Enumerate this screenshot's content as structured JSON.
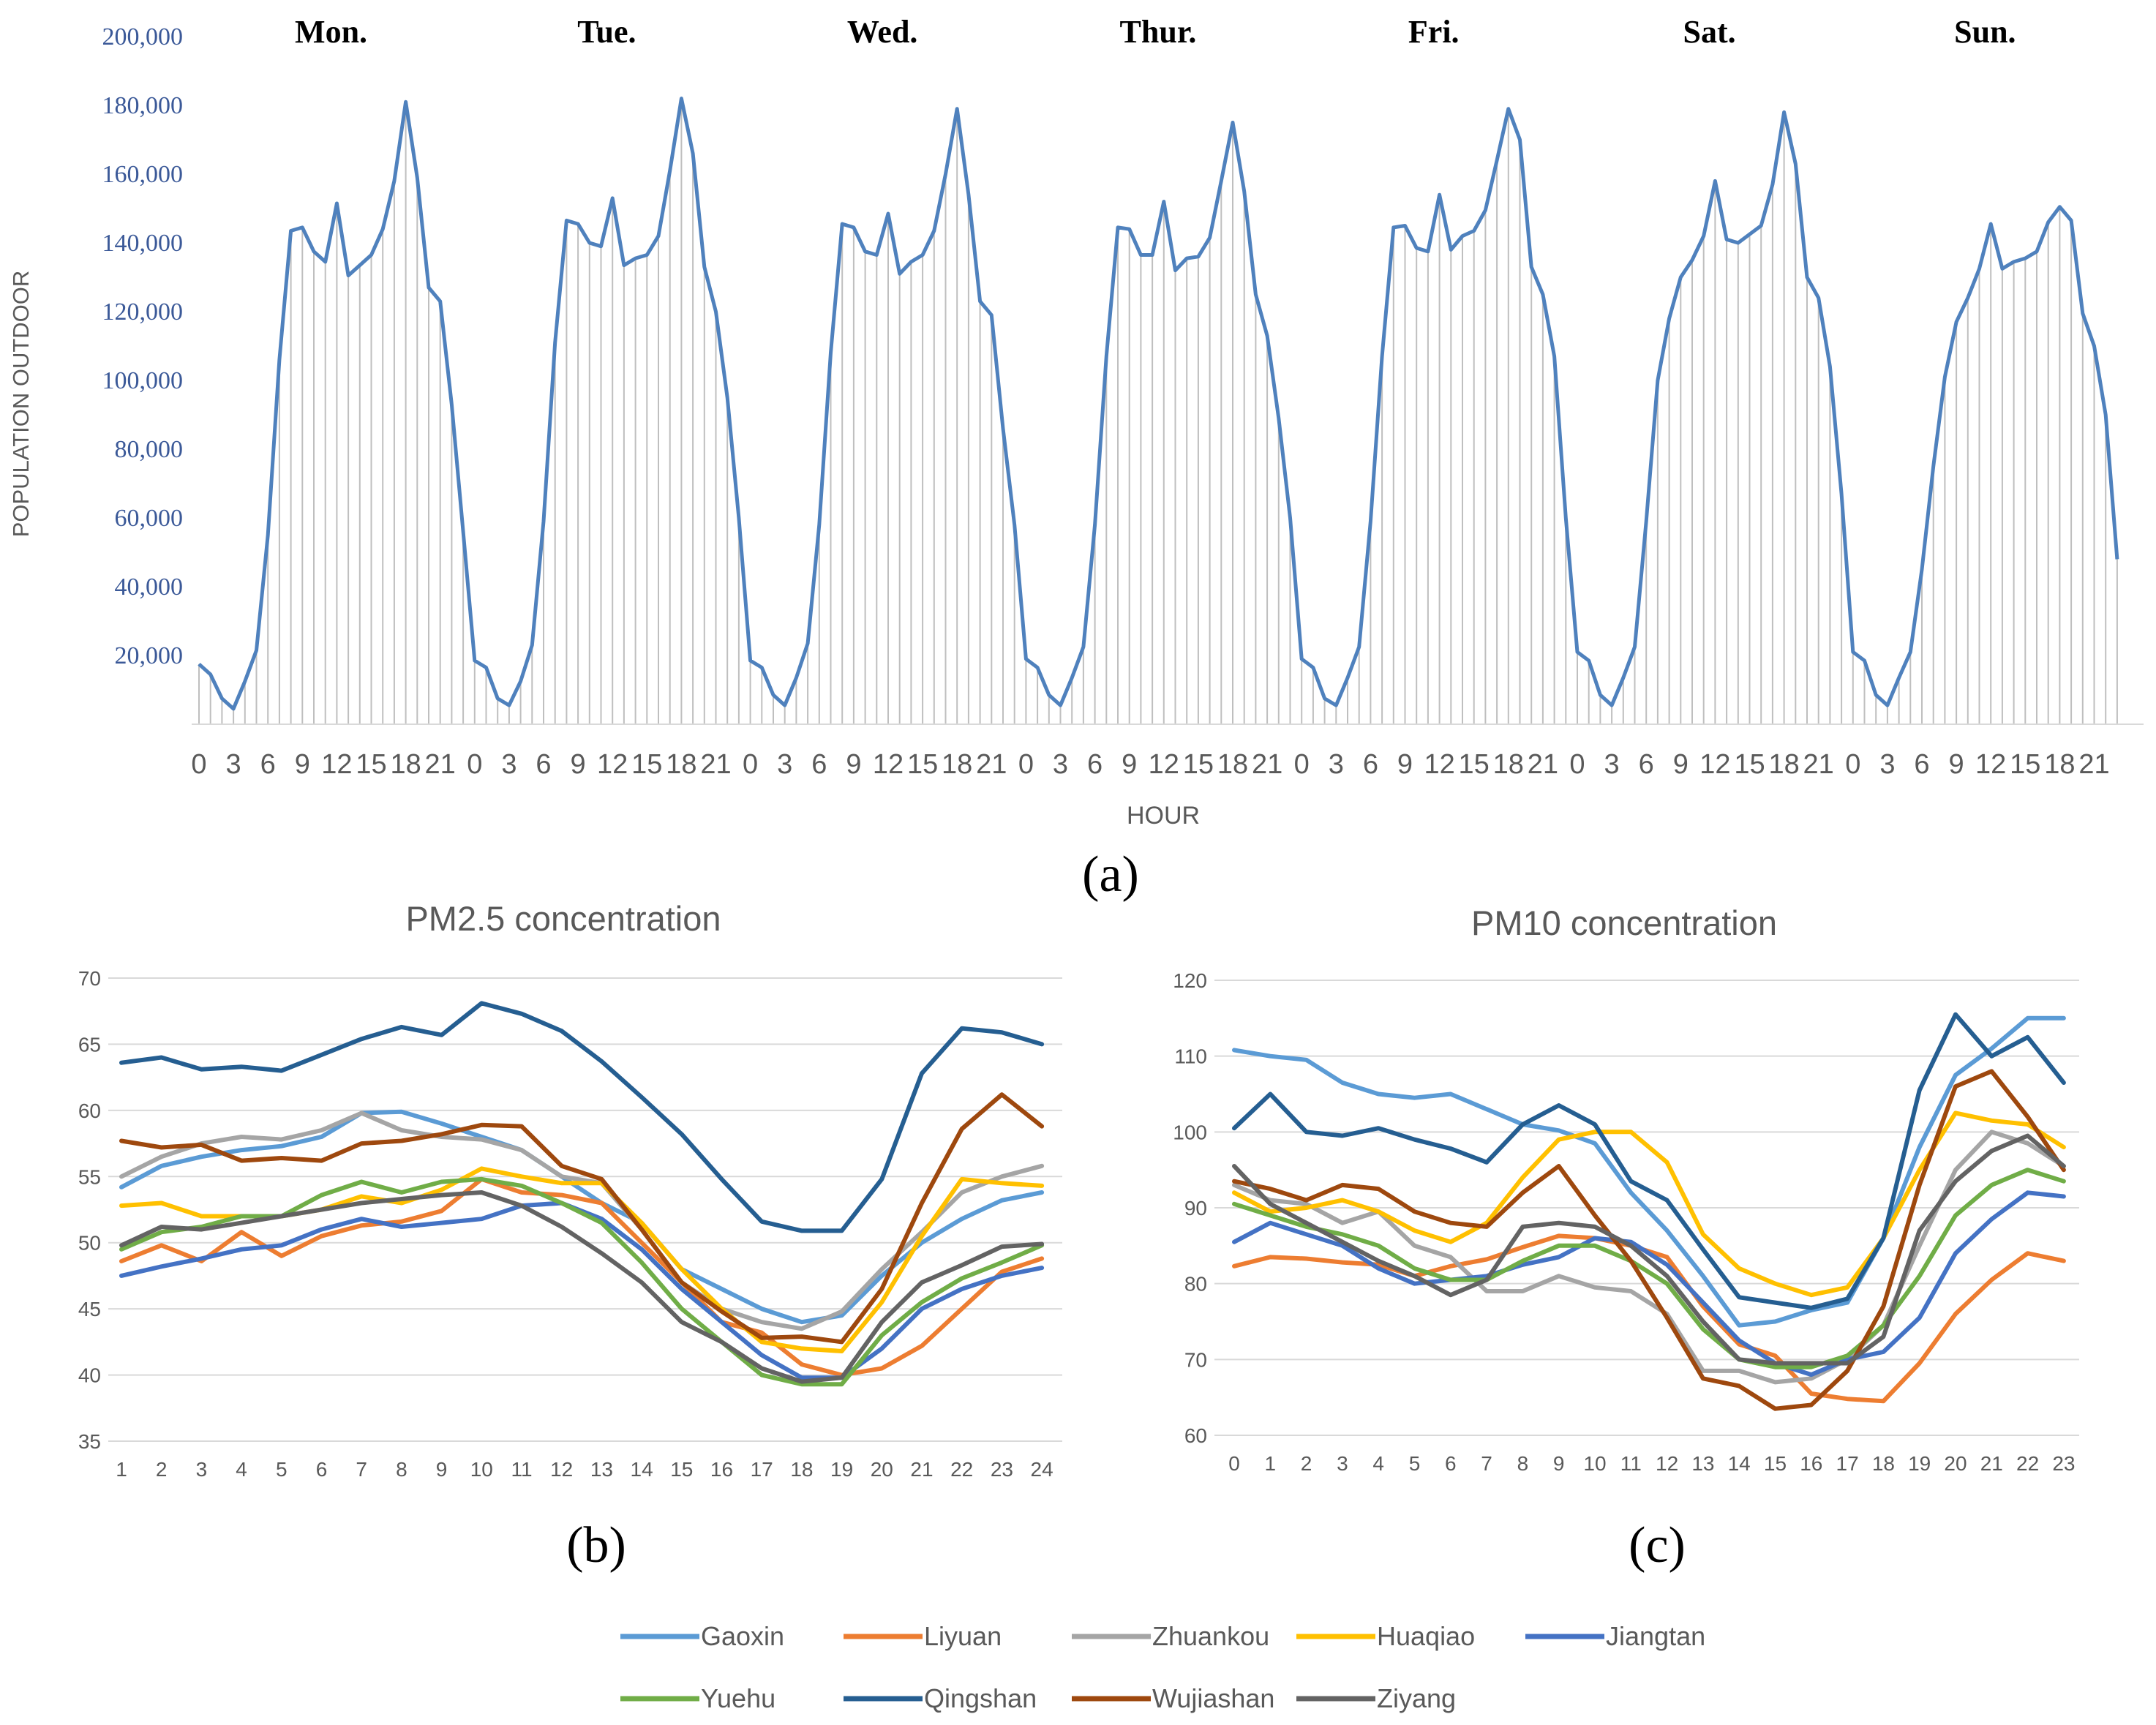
{
  "chart_data": [
    {
      "id": "a",
      "type": "area",
      "panel_label": "(a)",
      "xlabel": "HOUR",
      "ylabel": "POPULATION OUTDOOR",
      "ylim": [
        0,
        200000
      ],
      "yticks": [
        "20,000",
        "40,000",
        "60,000",
        "80,000",
        "100,000",
        "120,000",
        "140,000",
        "160,000",
        "180,000",
        "200,000"
      ],
      "ytick_values": [
        20000,
        40000,
        60000,
        80000,
        100000,
        120000,
        140000,
        160000,
        180000,
        200000
      ],
      "hour_tick_labels": [
        "0",
        "3",
        "6",
        "9",
        "12",
        "15",
        "18",
        "21"
      ],
      "days": [
        {
          "label": "Mon.",
          "values": [
            17500,
            14500,
            7500,
            4500,
            12500,
            21500,
            55000,
            106000,
            143500,
            144500,
            137500,
            134500,
            151500,
            130500,
            133500,
            136500,
            144000,
            158000,
            181000,
            159000,
            127000,
            123000,
            93000,
            56000
          ]
        },
        {
          "label": "Tue.",
          "values": [
            18500,
            16500,
            7500,
            5500,
            12500,
            23000,
            59000,
            111000,
            146500,
            145500,
            140000,
            139000,
            153000,
            133500,
            135500,
            136500,
            142000,
            161000,
            182000,
            166000,
            133000,
            120000,
            95000,
            60000
          ]
        },
        {
          "label": "Wed.",
          "values": [
            18500,
            16500,
            8500,
            5500,
            13500,
            23500,
            58000,
            108000,
            145500,
            144500,
            137500,
            136500,
            148500,
            131000,
            134500,
            136500,
            143500,
            160000,
            179000,
            154000,
            123000,
            119000,
            86000,
            58000
          ]
        },
        {
          "label": "Thur.",
          "values": [
            19000,
            16500,
            8500,
            5500,
            13500,
            22500,
            58000,
            107000,
            144500,
            144000,
            136500,
            136500,
            152000,
            132000,
            135500,
            136000,
            141500,
            158000,
            175000,
            155000,
            125000,
            113000,
            89000,
            60000
          ]
        },
        {
          "label": "Fri.",
          "values": [
            19000,
            16500,
            7500,
            5500,
            13500,
            22500,
            59000,
            107000,
            144500,
            145000,
            138500,
            137500,
            154000,
            138000,
            142000,
            143500,
            149500,
            164000,
            179000,
            170000,
            133000,
            125000,
            107000,
            60000
          ]
        },
        {
          "label": "Sat.",
          "values": [
            21000,
            18500,
            8500,
            5500,
            13500,
            22500,
            59000,
            100000,
            118000,
            130000,
            135000,
            142000,
            158000,
            141000,
            140000,
            142500,
            145000,
            157000,
            178000,
            163000,
            130000,
            124000,
            104000,
            67000
          ]
        },
        {
          "label": "Sun.",
          "values": [
            21000,
            18500,
            8500,
            5500,
            13500,
            21000,
            45000,
            75000,
            101000,
            117000,
            124000,
            132500,
            145500,
            132500,
            134500,
            135500,
            137500,
            146000,
            150500,
            146500,
            119500,
            110000,
            90000,
            48000
          ]
        }
      ]
    },
    {
      "id": "b",
      "type": "line",
      "panel_label": "(b)",
      "title": "PM2.5 concentration",
      "x": [
        "1",
        "2",
        "3",
        "4",
        "5",
        "6",
        "7",
        "8",
        "9",
        "10",
        "11",
        "12",
        "13",
        "14",
        "15",
        "16",
        "17",
        "18",
        "19",
        "20",
        "21",
        "22",
        "23",
        "24"
      ],
      "ylim": [
        35,
        70
      ],
      "yticks": [
        "35",
        "40",
        "45",
        "50",
        "55",
        "60",
        "65",
        "70"
      ],
      "ytick_values": [
        35,
        40,
        45,
        50,
        55,
        60,
        65,
        70
      ],
      "series": [
        {
          "name": "Gaoxin",
          "values": [
            54.2,
            55.8,
            56.5,
            57.0,
            57.3,
            58.0,
            59.8,
            59.9,
            59.0,
            58.0,
            57.0,
            55.0,
            53.0,
            51.5,
            48.0,
            46.5,
            45.0,
            44.0,
            44.5,
            47.5,
            50.0,
            51.8,
            53.2,
            53.8
          ]
        },
        {
          "name": "Liyuan",
          "values": [
            48.6,
            49.8,
            48.6,
            50.8,
            49.0,
            50.5,
            51.3,
            51.6,
            52.4,
            54.8,
            53.8,
            53.6,
            53.0,
            50.0,
            47.0,
            44.0,
            43.2,
            40.8,
            40.0,
            40.5,
            42.2,
            45.0,
            47.8,
            48.8
          ]
        },
        {
          "name": "Zhuankou",
          "values": [
            55.0,
            56.5,
            57.5,
            58.0,
            57.8,
            58.5,
            59.8,
            58.5,
            58.0,
            57.8,
            57.0,
            55.0,
            54.5,
            51.0,
            47.0,
            45.0,
            44.0,
            43.5,
            44.8,
            48.0,
            50.8,
            53.8,
            55.0,
            55.8
          ]
        },
        {
          "name": "Huaqiao",
          "values": [
            52.8,
            53.0,
            52.0,
            52.0,
            52.0,
            52.5,
            53.5,
            53.0,
            54.0,
            55.6,
            55.0,
            54.5,
            54.5,
            51.5,
            48.0,
            45.0,
            42.5,
            42.0,
            41.8,
            45.5,
            50.5,
            54.8,
            54.5,
            54.3
          ]
        },
        {
          "name": "Jiangtan",
          "values": [
            47.5,
            48.2,
            48.8,
            49.5,
            49.8,
            51.0,
            51.8,
            51.2,
            51.5,
            51.8,
            52.8,
            53.0,
            51.8,
            49.5,
            46.5,
            44.0,
            41.5,
            39.8,
            39.8,
            42.0,
            45.0,
            46.5,
            47.5,
            48.1
          ]
        },
        {
          "name": "Yuehu",
          "values": [
            49.5,
            50.8,
            51.2,
            52.0,
            52.0,
            53.6,
            54.6,
            53.8,
            54.6,
            54.8,
            54.3,
            53.0,
            51.5,
            48.5,
            45.0,
            42.5,
            40.0,
            39.3,
            39.3,
            43.0,
            45.5,
            47.3,
            48.5,
            49.8
          ]
        },
        {
          "name": "Qingshan",
          "values": [
            63.6,
            64.0,
            63.1,
            63.3,
            63.0,
            64.2,
            65.4,
            66.3,
            65.7,
            68.1,
            67.3,
            66.0,
            63.7,
            61.0,
            58.2,
            54.8,
            51.6,
            50.9,
            50.9,
            54.8,
            62.8,
            66.2,
            65.9,
            65.0
          ]
        },
        {
          "name": "Wujiashan",
          "values": [
            57.7,
            57.2,
            57.4,
            56.2,
            56.4,
            56.2,
            57.5,
            57.7,
            58.2,
            58.9,
            58.8,
            55.8,
            54.8,
            51.0,
            47.0,
            44.8,
            42.8,
            42.9,
            42.5,
            46.5,
            53.0,
            58.6,
            61.2,
            58.8
          ]
        },
        {
          "name": "Ziyang",
          "values": [
            49.8,
            51.2,
            51.0,
            51.5,
            52.0,
            52.5,
            53.0,
            53.3,
            53.6,
            53.8,
            52.8,
            51.2,
            49.2,
            47.0,
            44.0,
            42.5,
            40.5,
            39.5,
            39.8,
            44.0,
            47.0,
            48.3,
            49.7,
            49.9
          ]
        }
      ]
    },
    {
      "id": "c",
      "type": "line",
      "panel_label": "(c)",
      "title": "PM10 concentration",
      "x": [
        "0",
        "1",
        "2",
        "3",
        "4",
        "5",
        "6",
        "7",
        "8",
        "9",
        "10",
        "11",
        "12",
        "13",
        "14",
        "15",
        "16",
        "17",
        "18",
        "19",
        "20",
        "21",
        "22",
        "23"
      ],
      "ylim": [
        60,
        120
      ],
      "yticks": [
        "60",
        "70",
        "80",
        "90",
        "100",
        "110",
        "120"
      ],
      "ytick_values": [
        60,
        70,
        80,
        90,
        100,
        110,
        120
      ],
      "series": [
        {
          "name": "Gaoxin",
          "values": [
            110.8,
            110.0,
            109.5,
            106.5,
            105.0,
            104.5,
            105.0,
            103.0,
            101.0,
            100.2,
            98.5,
            92.0,
            87.0,
            81.0,
            74.5,
            75.0,
            76.5,
            77.5,
            86.0,
            98.0,
            107.5,
            111.0,
            115.0,
            115.0
          ]
        },
        {
          "name": "Liyuan",
          "values": [
            82.3,
            83.5,
            83.3,
            82.8,
            82.5,
            81.0,
            82.3,
            83.2,
            84.8,
            86.3,
            86.0,
            85.0,
            83.5,
            77.0,
            72.0,
            70.5,
            65.5,
            64.8,
            64.5,
            69.5,
            76.0,
            80.5,
            84.0,
            83.0
          ]
        },
        {
          "name": "Zhuankou",
          "values": [
            93.0,
            91.0,
            90.5,
            88.0,
            89.5,
            85.0,
            83.5,
            79.0,
            79.0,
            81.0,
            79.5,
            79.0,
            76.0,
            68.5,
            68.5,
            67.0,
            67.5,
            70.0,
            74.5,
            85.0,
            95.0,
            100.0,
            98.5,
            95.5
          ]
        },
        {
          "name": "Huaqiao",
          "values": [
            92.0,
            89.5,
            90.0,
            91.0,
            89.5,
            87.0,
            85.5,
            88.0,
            94.0,
            99.0,
            100.0,
            100.0,
            96.0,
            86.5,
            82.0,
            80.0,
            78.5,
            79.5,
            86.0,
            95.0,
            102.5,
            101.5,
            101.0,
            98.0
          ]
        },
        {
          "name": "Jiangtan",
          "values": [
            85.5,
            88.0,
            86.5,
            85.0,
            82.0,
            80.0,
            80.5,
            81.0,
            82.5,
            83.5,
            86.0,
            85.5,
            82.5,
            77.5,
            72.5,
            69.5,
            68.0,
            70.0,
            71.0,
            75.5,
            84.0,
            88.5,
            92.0,
            91.5
          ]
        },
        {
          "name": "Yuehu",
          "values": [
            90.5,
            89.0,
            87.5,
            86.5,
            85.0,
            82.0,
            80.5,
            80.5,
            83.0,
            85.0,
            85.0,
            83.0,
            80.0,
            74.0,
            70.0,
            69.0,
            69.0,
            70.5,
            74.5,
            81.0,
            89.0,
            93.0,
            95.0,
            93.5
          ]
        },
        {
          "name": "Qingshan",
          "values": [
            100.5,
            105.0,
            100.0,
            99.5,
            100.5,
            99.0,
            97.8,
            96.0,
            101.0,
            103.5,
            101.0,
            93.5,
            91.0,
            84.5,
            78.2,
            77.5,
            76.8,
            78.0,
            86.0,
            105.5,
            115.5,
            110.0,
            112.5,
            106.5
          ]
        },
        {
          "name": "Wujiashan",
          "values": [
            93.5,
            92.5,
            91.0,
            93.0,
            92.5,
            89.5,
            88.0,
            87.5,
            92.0,
            95.5,
            89.0,
            83.0,
            75.5,
            67.5,
            66.5,
            63.5,
            64.0,
            68.5,
            77.0,
            93.0,
            106.0,
            108.0,
            102.0,
            95.0
          ]
        },
        {
          "name": "Ziyang",
          "values": [
            95.5,
            90.5,
            88.0,
            85.5,
            83.0,
            81.0,
            78.5,
            80.5,
            87.5,
            88.0,
            87.5,
            85.0,
            81.0,
            75.0,
            70.0,
            69.5,
            69.5,
            69.5,
            73.0,
            87.0,
            93.5,
            97.5,
            99.5,
            95.5
          ]
        }
      ]
    }
  ],
  "legend": [
    {
      "name": "Gaoxin",
      "color": "#5B9BD5"
    },
    {
      "name": "Liyuan",
      "color": "#ED7D31"
    },
    {
      "name": "Zhuankou",
      "color": "#A5A5A5"
    },
    {
      "name": "Huaqiao",
      "color": "#FFC000"
    },
    {
      "name": "Jiangtan",
      "color": "#4472C4"
    },
    {
      "name": "Yuehu",
      "color": "#70AD47"
    },
    {
      "name": "Qingshan",
      "color": "#255E91"
    },
    {
      "name": "Wujiashan",
      "color": "#9E480E"
    },
    {
      "name": "Ziyang",
      "color": "#636363"
    }
  ],
  "colors": {
    "population_line": "#4F81BD",
    "axis_text_a": "#3B5998",
    "grid": "#D9D9D9",
    "tick_text": "#595959"
  }
}
